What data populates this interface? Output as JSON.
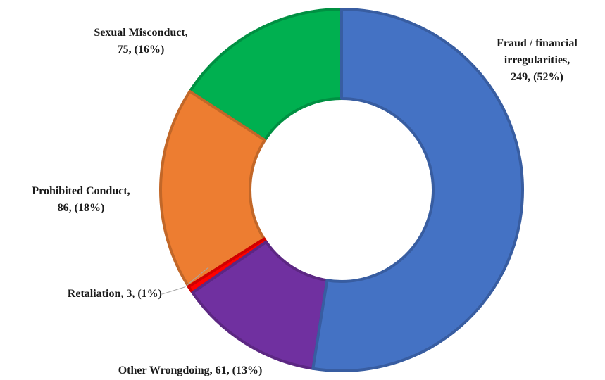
{
  "chart_data": {
    "type": "donut",
    "categories": [
      "Fraud / financial irregularities,",
      "Other Wrongdoing,",
      "Retaliation,",
      "Prohibited Conduct,",
      "Sexual Misconduct,"
    ],
    "values": [
      249,
      61,
      3,
      86,
      75
    ],
    "value_labels": [
      "249, (52%)",
      "61, (13%)",
      "3, (1%)",
      "86, (18%)",
      "75, (16%)"
    ],
    "colors": [
      "#4472c4",
      "#7030a0",
      "#ff0000",
      "#ed7d31",
      "#00b050"
    ]
  }
}
